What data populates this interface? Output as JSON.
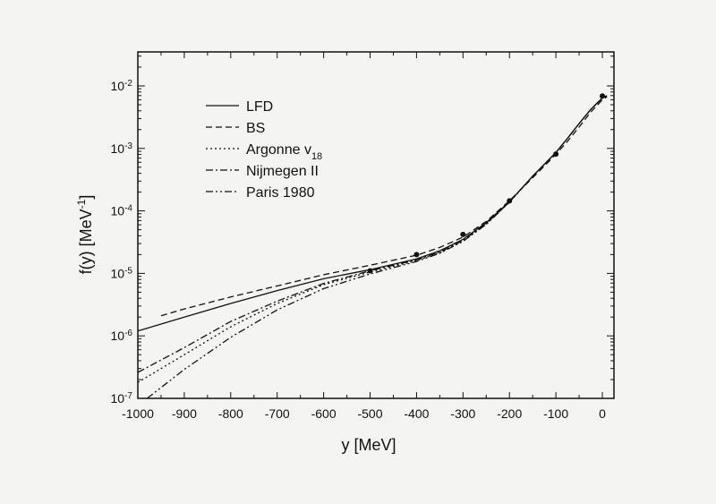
{
  "chart_data": {
    "type": "line",
    "xlabel": "y [MeV]",
    "ylabel": "f(y) [MeV",
    "ylabel_sup": "-1",
    "ylabel_close": "]",
    "x_range": [
      -1000,
      25
    ],
    "y_range": [
      1e-07,
      0.035
    ],
    "y_scale": "log",
    "grid": false,
    "legend_position": "top-left",
    "x_ticks": [
      -1000,
      -900,
      -800,
      -700,
      -600,
      -500,
      -400,
      -300,
      -200,
      -100,
      0
    ],
    "y_ticks": [
      {
        "value": 1e-07,
        "base": "10",
        "exp": "-7"
      },
      {
        "value": 1e-06,
        "base": "10",
        "exp": "-6"
      },
      {
        "value": 1e-05,
        "base": "10",
        "exp": "-5"
      },
      {
        "value": 0.0001,
        "base": "10",
        "exp": "-4"
      },
      {
        "value": 0.001,
        "base": "10",
        "exp": "-3"
      },
      {
        "value": 0.01,
        "base": "10",
        "exp": "-2"
      }
    ],
    "series": [
      {
        "name": "LFD",
        "dash": "solid",
        "x": [
          -1000,
          -900,
          -800,
          -700,
          -600,
          -500,
          -400,
          -350,
          -300,
          -250,
          -200,
          -150,
          -100,
          -75,
          -50,
          -25,
          0,
          10
        ],
        "y": [
          1.2e-06,
          2e-06,
          3.3e-06,
          5.3e-06,
          8.2e-06,
          1.15e-05,
          1.7e-05,
          2.3e-05,
          3.5e-05,
          6.5e-05,
          0.00014,
          0.00036,
          0.00086,
          0.00145,
          0.0025,
          0.0042,
          0.0064,
          0.007
        ]
      },
      {
        "name": "BS",
        "dash": "dashed",
        "x": [
          -950,
          -900,
          -800,
          -700,
          -600,
          -500,
          -400,
          -350,
          -300,
          -250,
          -200,
          -150,
          -100,
          -75,
          -50,
          -25,
          0,
          10
        ],
        "y": [
          2.1e-06,
          2.7e-06,
          4.2e-06,
          6.3e-06,
          9.5e-06,
          1.35e-05,
          1.95e-05,
          2.6e-05,
          3.8e-05,
          6.8e-05,
          0.000145,
          0.00034,
          0.0008,
          0.0013,
          0.0022,
          0.0038,
          0.006,
          0.0067
        ]
      },
      {
        "name": "Argonne v",
        "name_sub": "18",
        "dash": "dotted",
        "x": [
          -1000,
          -900,
          -800,
          -700,
          -600,
          -500,
          -400,
          -350,
          -300,
          -250,
          -200,
          -150,
          -100,
          -75,
          -50,
          -25,
          0,
          10
        ],
        "y": [
          1.8e-07,
          5e-07,
          1.4e-06,
          3.3e-06,
          6.6e-06,
          1.05e-05,
          1.6e-05,
          2.15e-05,
          3.3e-05,
          6.2e-05,
          0.000138,
          0.00036,
          0.00086,
          0.00145,
          0.0025,
          0.0042,
          0.0064,
          0.007
        ]
      },
      {
        "name": "Nijmegen II",
        "dash": "dashdot",
        "x": [
          -1000,
          -900,
          -800,
          -700,
          -600,
          -500,
          -400,
          -350,
          -300,
          -250,
          -200,
          -150,
          -100,
          -75,
          -50,
          -25,
          0,
          10
        ],
        "y": [
          2.6e-07,
          6.5e-07,
          1.7e-06,
          3.6e-06,
          6.9e-06,
          1.1e-05,
          1.65e-05,
          2.2e-05,
          3.35e-05,
          6.3e-05,
          0.000139,
          0.00036,
          0.00086,
          0.00145,
          0.0025,
          0.0042,
          0.0064,
          0.007
        ]
      },
      {
        "name": "Paris 1980",
        "dash": "dashdotdot",
        "x": [
          -980,
          -900,
          -800,
          -700,
          -600,
          -500,
          -400,
          -350,
          -300,
          -250,
          -200,
          -150,
          -100,
          -75,
          -50,
          -25,
          0,
          10
        ],
        "y": [
          1e-07,
          2.9e-07,
          9.5e-07,
          2.6e-06,
          5.7e-06,
          9.8e-06,
          1.55e-05,
          2.1e-05,
          3.25e-05,
          6.1e-05,
          0.000137,
          0.00036,
          0.00086,
          0.00145,
          0.0025,
          0.0042,
          0.0064,
          0.007
        ]
      }
    ],
    "data_points": {
      "x": [
        -500,
        -400,
        -300,
        -200,
        -100,
        0
      ],
      "y": [
        1.1e-05,
        2e-05,
        4.2e-05,
        0.000145,
        0.00081,
        0.0069
      ]
    }
  }
}
